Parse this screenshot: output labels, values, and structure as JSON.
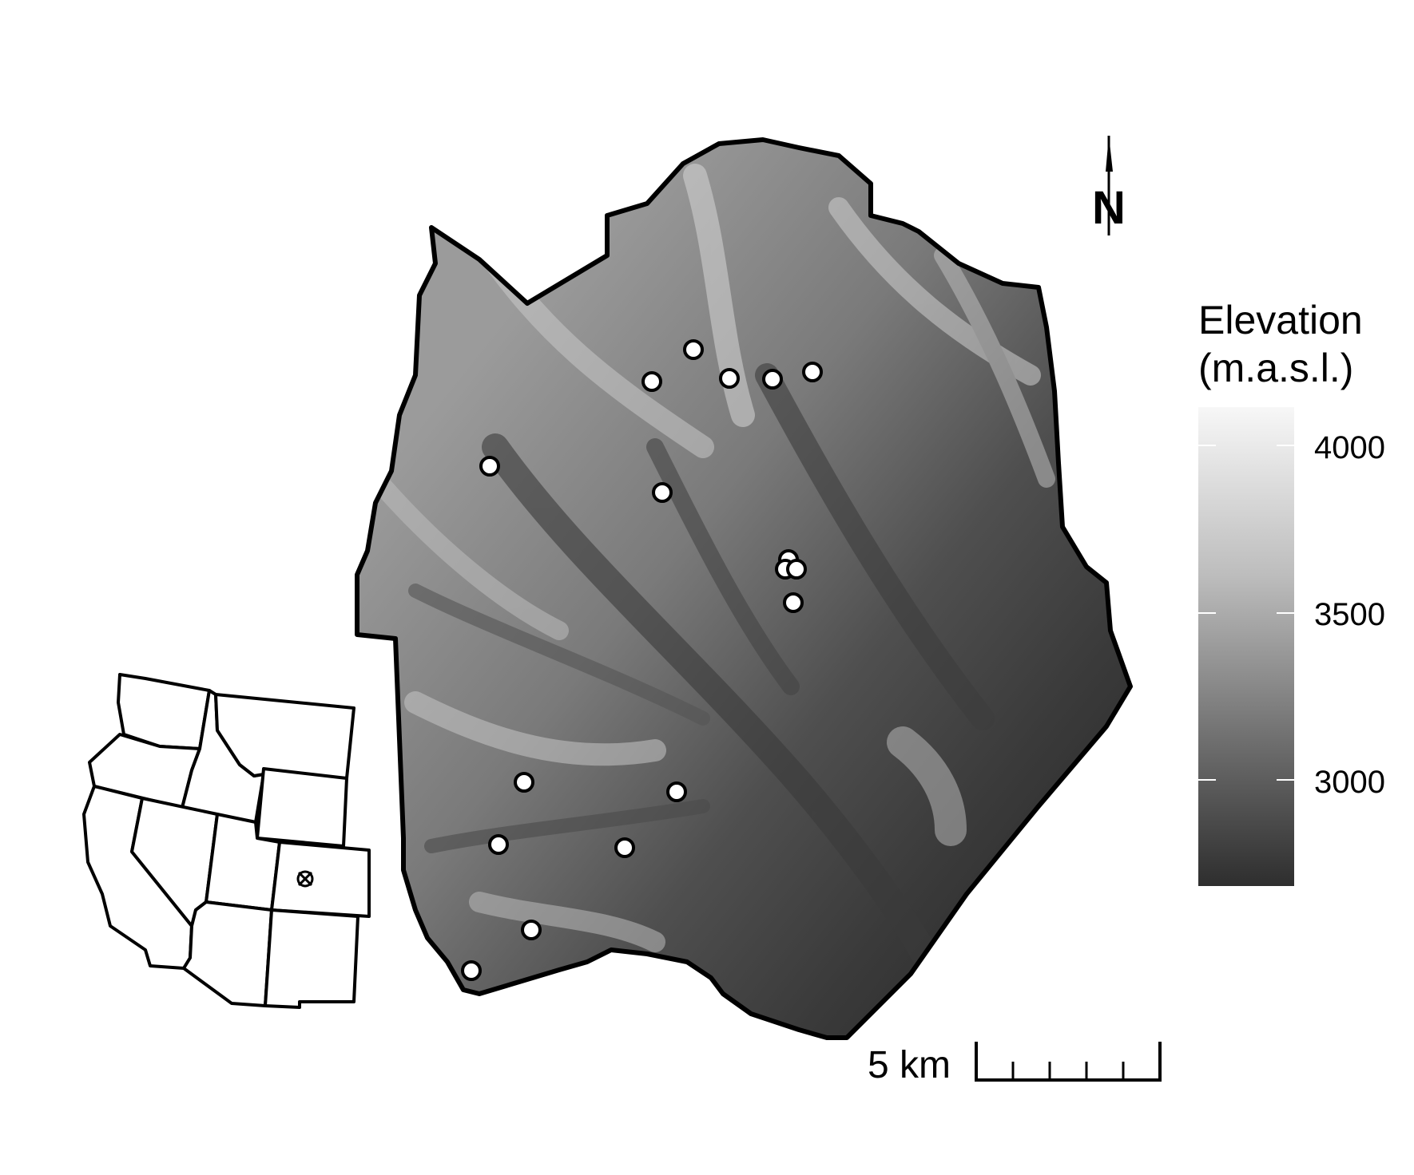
{
  "legend": {
    "title_line1": "Elevation",
    "title_line2": "(m.a.s.l.)",
    "ticks": [
      "4000",
      "3500",
      "3000"
    ],
    "color_low": "#2e2e2e",
    "color_high": "#f7f7f7"
  },
  "scale_bar": {
    "label": "5 km"
  },
  "north_arrow": {
    "label": "N"
  },
  "inset": {
    "marker_icon": "target-cross-icon",
    "region": "western United States"
  },
  "sites": {
    "count": 18,
    "marker_fill": "#ffffff",
    "marker_stroke": "#000000"
  },
  "colors": {
    "boundary": "#000000",
    "background": "#ffffff"
  }
}
